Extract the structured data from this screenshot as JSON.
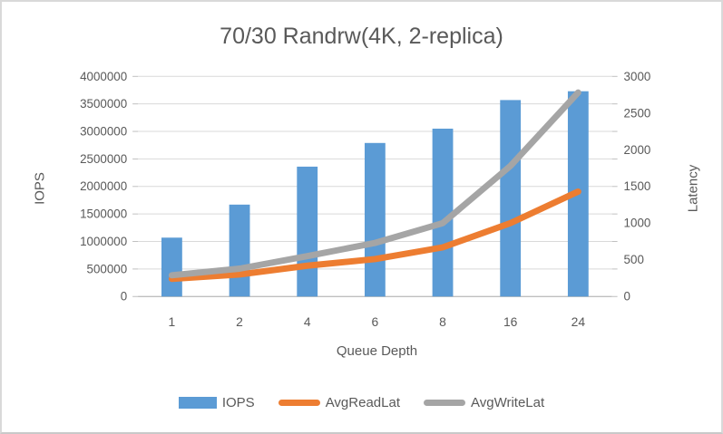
{
  "title": "70/30 Randrw(4K, 2-replica)",
  "colors": {
    "bar_blue": "#5B9BD5",
    "line_orange": "#ED7D31",
    "line_gray": "#A5A5A5",
    "gridline": "#D9D9D9",
    "axis_line": "#BFBFBF",
    "text": "#595959",
    "frame_border": "#D9D9D9"
  },
  "chart_data": {
    "type": "combo",
    "subtype": "bar+line",
    "title": "70/30 Randrw(4K, 2-replica)",
    "categories": [
      "1",
      "2",
      "4",
      "6",
      "8",
      "16",
      "24"
    ],
    "xlabel": "Queue Depth",
    "series": [
      {
        "name": "IOPS",
        "type": "bar",
        "axis": "left",
        "color": "#5B9BD5",
        "values": [
          1070000,
          1670000,
          2360000,
          2790000,
          3050000,
          3570000,
          3730000
        ]
      },
      {
        "name": "AvgReadLat",
        "type": "line",
        "axis": "right",
        "color": "#ED7D31",
        "values": [
          240,
          300,
          420,
          510,
          670,
          1000,
          1430
        ]
      },
      {
        "name": "AvgWriteLat",
        "type": "line",
        "axis": "right",
        "color": "#A5A5A5",
        "values": [
          290,
          380,
          550,
          730,
          1000,
          1780,
          2780
        ]
      }
    ],
    "axes": {
      "left": {
        "label": "IOPS",
        "min": 0,
        "max": 4000000,
        "ticks": [
          "0",
          "500000",
          "1000000",
          "1500000",
          "2000000",
          "2500000",
          "3000000",
          "3500000",
          "4000000"
        ]
      },
      "right": {
        "label": "Latency",
        "min": 0,
        "max": 3000,
        "ticks": [
          "0",
          "500",
          "1000",
          "1500",
          "2000",
          "2500",
          "3000"
        ]
      }
    },
    "grid": true,
    "legend_position": "bottom"
  }
}
